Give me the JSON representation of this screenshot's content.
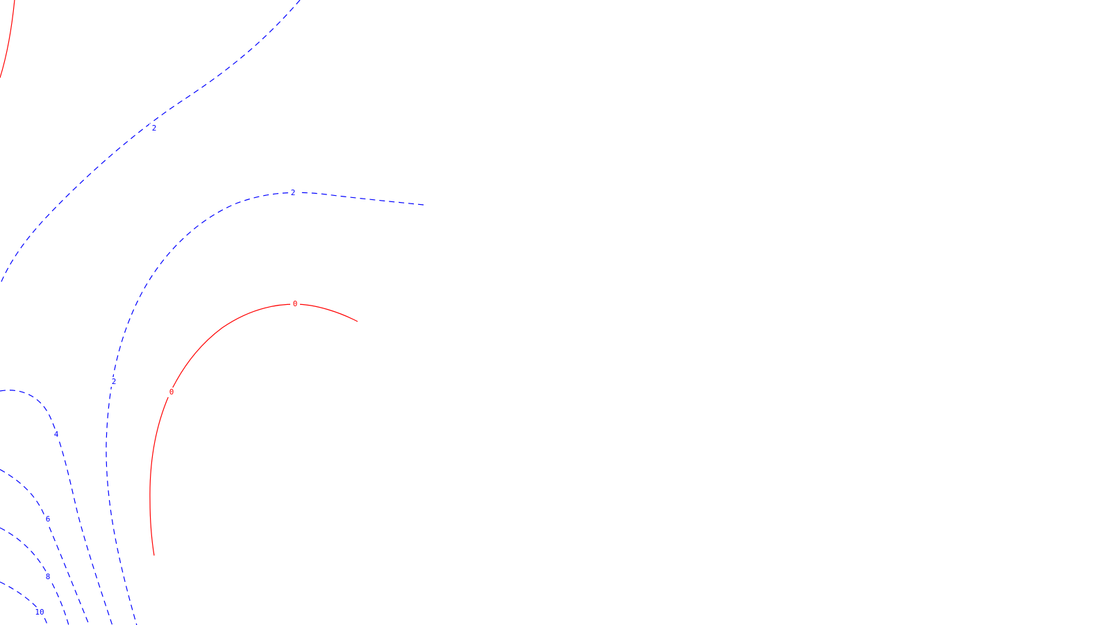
{
  "colors": {
    "background": "#ffffff",
    "positive": "#0000ff",
    "zero": "#ff0000"
  },
  "contours": [
    {
      "id": "neg-top-left",
      "label": "",
      "color": "#ff0000",
      "dashed": false
    },
    {
      "id": "c2-outer",
      "label": "2",
      "color": "#0000ff",
      "dashed": true
    },
    {
      "id": "c2-inner",
      "label": "2",
      "color": "#0000ff",
      "dashed": true
    },
    {
      "id": "c0",
      "label": "0",
      "color": "#ff0000",
      "dashed": false
    },
    {
      "id": "c4",
      "label": "4",
      "color": "#0000ff",
      "dashed": true
    },
    {
      "id": "c6",
      "label": "6",
      "color": "#0000ff",
      "dashed": true
    },
    {
      "id": "c8",
      "label": "8",
      "color": "#0000ff",
      "dashed": true
    },
    {
      "id": "c10",
      "label": "10",
      "color": "#0000ff",
      "dashed": true
    }
  ]
}
